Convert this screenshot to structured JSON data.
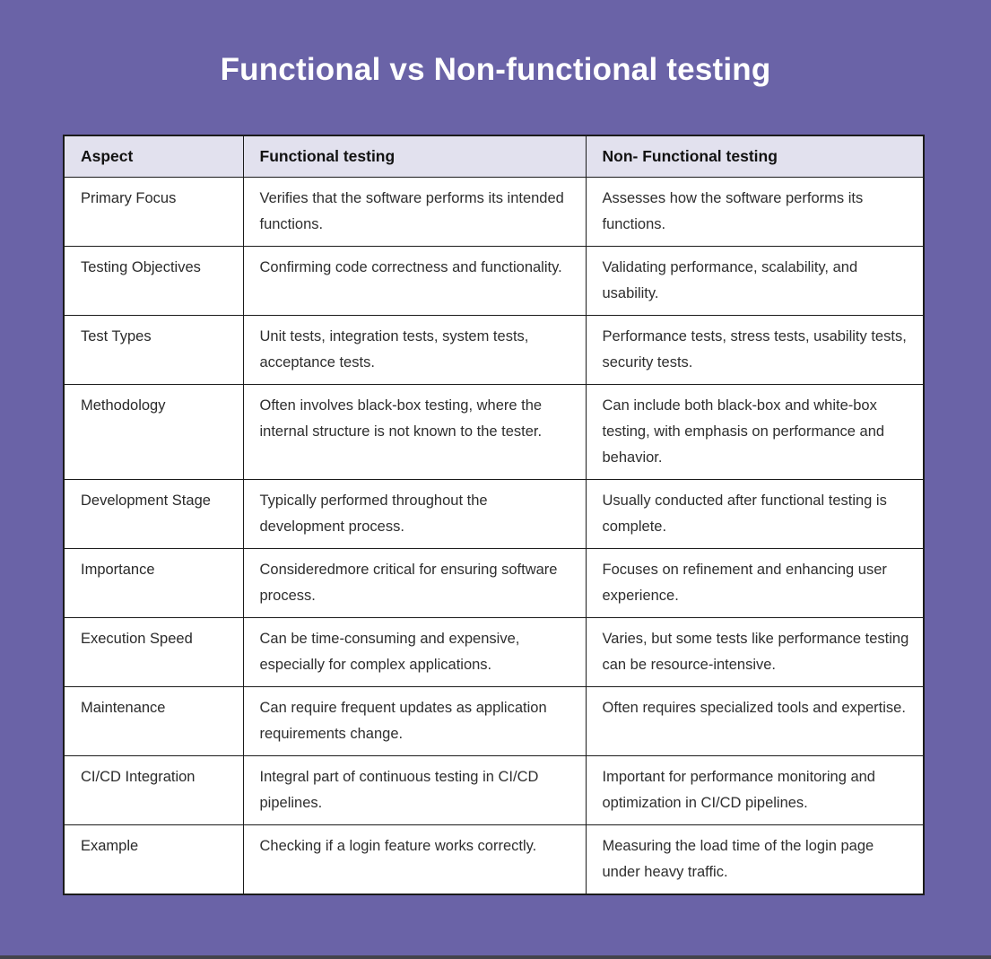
{
  "page": {
    "title": "Functional vs Non-functional testing",
    "background_color": "#6A63A7",
    "bottom_bar_color": "#43434B",
    "title_color": "#FFFFFF"
  },
  "table": {
    "header_bg_color": "#E2E1EE",
    "border_color": "#1B1B1B",
    "columns": [
      "Aspect",
      "Functional testing",
      "Non- Functional testing"
    ],
    "rows": [
      {
        "aspect": "Primary Focus",
        "functional": "Verifies that the software performs its intended functions.",
        "non_functional": "Assesses how the software performs its functions."
      },
      {
        "aspect": "Testing Objectives",
        "functional": "Confirming code correctness and functionality.",
        "non_functional": "Validating performance, scalability, and usability."
      },
      {
        "aspect": "Test Types",
        "functional": "Unit tests, integration tests, system tests, acceptance tests.",
        "non_functional": "Performance tests, stress tests, usability tests, security tests."
      },
      {
        "aspect": "Methodology",
        "functional": "Often involves black-box testing, where the internal structure is not known to the tester.",
        "non_functional": "Can include both black-box and white-box testing, with emphasis on performance and behavior."
      },
      {
        "aspect": "Development Stage",
        "functional": "Typically performed throughout the development process.",
        "non_functional": "Usually conducted after functional testing is complete."
      },
      {
        "aspect": "Importance",
        "functional": "Consideredmore critical for ensuring software process.",
        "non_functional": "Focuses on refinement and enhancing user experience."
      },
      {
        "aspect": "Execution Speed",
        "functional": "Can be time-consuming and expensive, especially for complex applications.",
        "non_functional": "Varies, but some tests like performance testing can be resource-intensive."
      },
      {
        "aspect": "Maintenance",
        "functional": "Can require frequent updates as application requirements change.",
        "non_functional": "Often requires specialized tools and expertise."
      },
      {
        "aspect": "CI/CD Integration",
        "functional": "Integral part of continuous testing in CI/CD pipelines.",
        "non_functional": "Important for performance monitoring and optimization in CI/CD pipelines."
      },
      {
        "aspect": "Example",
        "functional": "Checking if a login feature works correctly.",
        "non_functional": "Measuring the load time of the login page under heavy traffic."
      }
    ]
  }
}
